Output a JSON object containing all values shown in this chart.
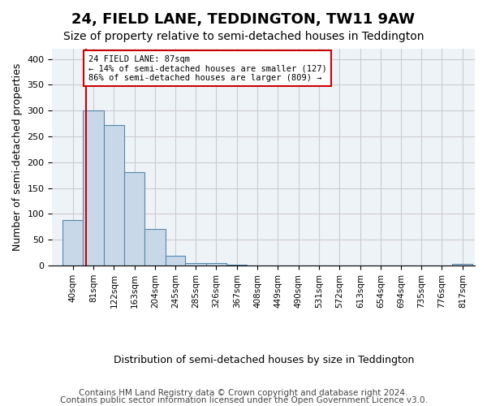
{
  "title": "24, FIELD LANE, TEDDINGTON, TW11 9AW",
  "subtitle": "Size of property relative to semi-detached houses in Teddington",
  "xlabel": "Distribution of semi-detached houses by size in Teddington",
  "ylabel": "Number of semi-detached properties",
  "footer_line1": "Contains HM Land Registry data © Crown copyright and database right 2024.",
  "footer_line2": "Contains public sector information licensed under the Open Government Licence v3.0.",
  "property_size": 87,
  "annotation_text": "24 FIELD LANE: 87sqm\n← 14% of semi-detached houses are smaller (127)\n86% of semi-detached houses are larger (809) →",
  "bar_edges": [
    40,
    81,
    122,
    163,
    204,
    245,
    285,
    326,
    367,
    408,
    449,
    490,
    531,
    572,
    613,
    654,
    694,
    735,
    776,
    817,
    858
  ],
  "bar_heights": [
    88,
    300,
    272,
    180,
    70,
    19,
    5,
    4,
    2,
    0,
    0,
    0,
    0,
    0,
    0,
    0,
    0,
    0,
    0,
    3
  ],
  "bar_color": "#c8d8e8",
  "bar_edge_color": "#5588aa",
  "bar_linewidth": 0.8,
  "vline_color": "#cc0000",
  "vline_x": 87,
  "ylim": [
    0,
    420
  ],
  "yticks": [
    0,
    50,
    100,
    150,
    200,
    250,
    300,
    350,
    400
  ],
  "grid_color": "#cccccc",
  "bg_color": "#eef3f8",
  "annotation_box_color": "#ffffff",
  "annotation_border_color": "#cc0000",
  "title_fontsize": 13,
  "subtitle_fontsize": 10,
  "tick_fontsize": 8,
  "label_fontsize": 9,
  "footer_fontsize": 7.5
}
